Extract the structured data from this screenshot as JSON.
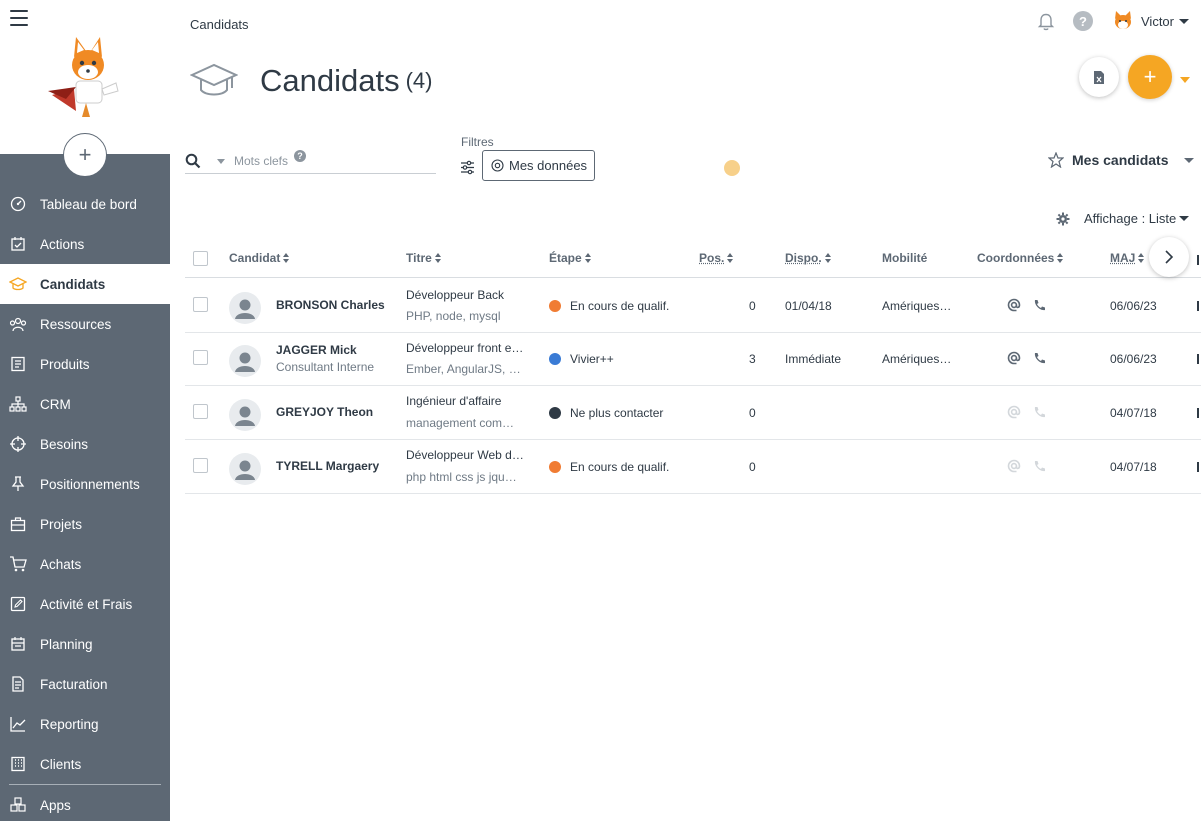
{
  "breadcrumb": "Candidats",
  "header": {
    "user_name": "Victor"
  },
  "page": {
    "title": "Candidats",
    "count": "(4)"
  },
  "sidebar": {
    "items": [
      {
        "label": "Tableau de bord",
        "icon": "dashboard-icon"
      },
      {
        "label": "Actions",
        "icon": "calendar-check-icon"
      },
      {
        "label": "Candidats",
        "icon": "graduation-cap-icon",
        "active": true
      },
      {
        "label": "Ressources",
        "icon": "people-icon"
      },
      {
        "label": "Produits",
        "icon": "book-icon"
      },
      {
        "label": "CRM",
        "icon": "org-chart-icon"
      },
      {
        "label": "Besoins",
        "icon": "crosshair-icon"
      },
      {
        "label": "Positionnements",
        "icon": "pin-icon"
      },
      {
        "label": "Projets",
        "icon": "briefcase-icon"
      },
      {
        "label": "Achats",
        "icon": "cart-icon"
      },
      {
        "label": "Activité et Frais",
        "icon": "edit-icon"
      },
      {
        "label": "Planning",
        "icon": "planning-icon"
      },
      {
        "label": "Facturation",
        "icon": "invoice-icon"
      },
      {
        "label": "Reporting",
        "icon": "chart-line-icon"
      },
      {
        "label": "Clients",
        "icon": "building-icon"
      },
      {
        "label": "Apps",
        "icon": "cubes-icon"
      }
    ]
  },
  "filters": {
    "search_placeholder": "Mots clefs",
    "label": "Filtres",
    "mes_donnees": "Mes données",
    "mes_candidats": "Mes candidats",
    "affichage": "Affichage : Liste"
  },
  "table": {
    "columns": {
      "candidat": "Candidat",
      "titre": "Titre",
      "etape": "Étape",
      "pos": "Pos.",
      "dispo": "Dispo.",
      "mobilite": "Mobilité",
      "coordonnees": "Coordonnées",
      "maj": "MAJ"
    },
    "rows": [
      {
        "name": "BRONSON Charles",
        "subtitle": "",
        "title": "Développeur Back",
        "skills": "PHP, node, mysql",
        "stage": "En cours de qualif.",
        "stage_color": "#f07c33",
        "pos": "0",
        "dispo": "01/04/18",
        "mobilite": "Amériques…",
        "has_contact": true,
        "maj": "06/06/23"
      },
      {
        "name": "JAGGER Mick",
        "subtitle": "Consultant Interne",
        "title": "Développeur front e…",
        "skills": "Ember, AngularJS, …",
        "stage": "Vivier++",
        "stage_color": "#3a7bd5",
        "pos": "3",
        "dispo": "Immédiate",
        "mobilite": "Amériques…",
        "has_contact": true,
        "maj": "06/06/23"
      },
      {
        "name": "GREYJOY Theon",
        "subtitle": "",
        "title": "Ingénieur d'affaire",
        "skills": "management com…",
        "stage": "Ne plus contacter",
        "stage_color": "#2f3a45",
        "pos": "0",
        "dispo": "",
        "mobilite": "",
        "has_contact": false,
        "maj": "04/07/18"
      },
      {
        "name": "TYRELL Margaery",
        "subtitle": "",
        "title": "Développeur Web d…",
        "skills": "php html css js jqu…",
        "stage": "En cours de qualif.",
        "stage_color": "#f07c33",
        "pos": "0",
        "dispo": "",
        "mobilite": "",
        "has_contact": false,
        "maj": "04/07/18"
      }
    ]
  },
  "colors": {
    "accent": "#f5a623",
    "sidebar": "#5d6874"
  }
}
